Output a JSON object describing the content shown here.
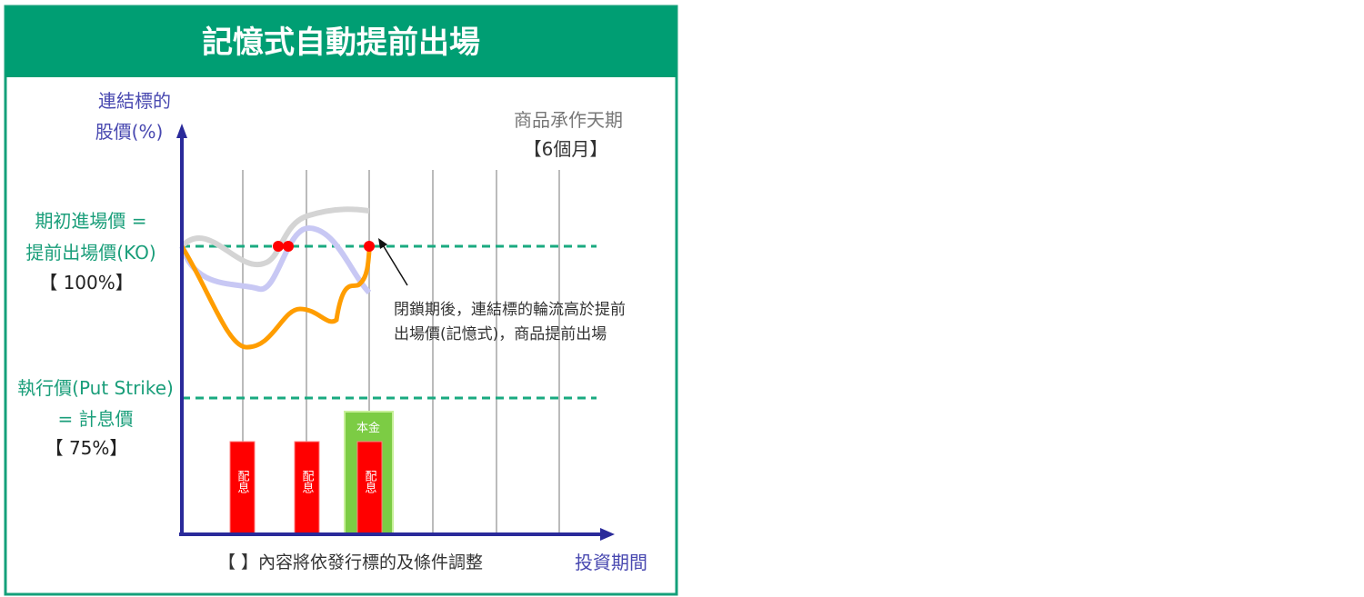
{
  "title": "記憶式自動提前出場",
  "y_axis_label": [
    "連結標的",
    "股價(%)"
  ],
  "x_axis_label": "投資期間",
  "tenor_label": [
    "商品承作天期",
    "【6個月】"
  ],
  "ko_label": [
    "期初進場價 =",
    "提前出場價(KO)",
    "【 100%】"
  ],
  "strike_label": [
    "執行價(Put Strike)",
    "= 計息價",
    "【 75%】"
  ],
  "annotation": [
    "閉鎖期後，連結標的輪流高於提前",
    "出場價(記憶式)，商品提前出場"
  ],
  "footnote": "【 】內容將依發行標的及條件調整",
  "coupon_label": "配息",
  "principal_label": "本金",
  "colors": {
    "header": "#009e73",
    "axis": "#2a2a9a",
    "teal_text": "#1a9e7a",
    "dashed": "#1aaa80",
    "orange": "#ff9d00",
    "coupon": "#ff0000",
    "principal": "#7ccc44",
    "blue_text": "#4848b0"
  }
}
